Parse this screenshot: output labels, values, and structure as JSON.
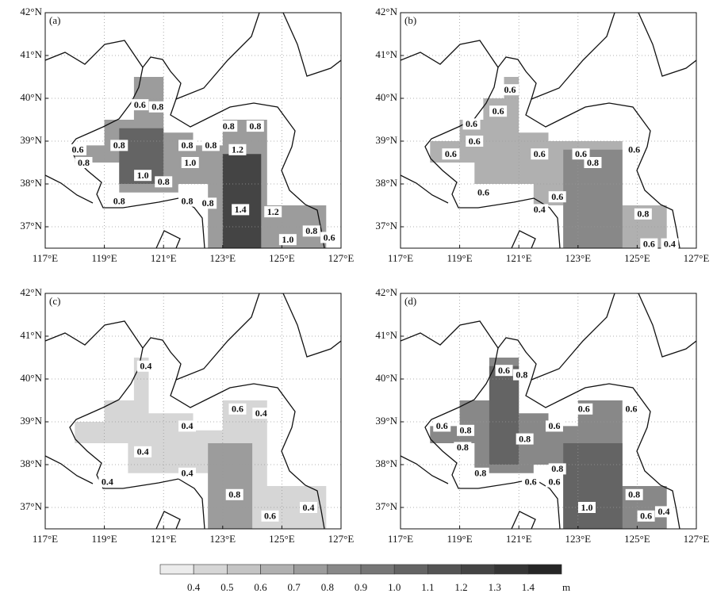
{
  "axes": {
    "lon_lim": [
      117,
      127
    ],
    "lat_lim": [
      36.5,
      42
    ],
    "lon_ticks": [
      {
        "value": 117,
        "label": "117°E"
      },
      {
        "value": 119,
        "label": "119°E"
      },
      {
        "value": 121,
        "label": "121°E"
      },
      {
        "value": 123,
        "label": "123°E"
      },
      {
        "value": 125,
        "label": "125°E"
      },
      {
        "value": 127,
        "label": "127°E"
      }
    ],
    "lat_ticks": [
      {
        "value": 37,
        "label": "37°N"
      },
      {
        "value": 38,
        "label": "38°N"
      },
      {
        "value": 39,
        "label": "39°N"
      },
      {
        "value": 40,
        "label": "40°N"
      },
      {
        "value": 41,
        "label": "41°N"
      },
      {
        "value": 42,
        "label": "42°N"
      }
    ]
  },
  "panels": [
    {
      "label": "(a)",
      "regions": [
        {
          "level": 0.7,
          "polygon": [
            [
              118,
              38.5
            ],
            [
              118,
              38.9
            ],
            [
              119,
              38.9
            ],
            [
              119,
              39.5
            ],
            [
              120,
              39.5
            ],
            [
              120,
              40.5
            ],
            [
              121,
              40.5
            ],
            [
              121,
              39.2
            ],
            [
              122,
              39.2
            ],
            [
              122,
              38.9
            ],
            [
              123,
              38.9
            ],
            [
              123,
              39.5
            ],
            [
              124.5,
              39.5
            ],
            [
              124.5,
              37.5
            ],
            [
              126.5,
              37.5
            ],
            [
              126.5,
              36.5
            ],
            [
              122.5,
              36.5
            ],
            [
              122.5,
              38
            ],
            [
              121.5,
              38
            ],
            [
              121.5,
              37.8
            ],
            [
              119.5,
              37.8
            ],
            [
              119.5,
              38.5
            ]
          ]
        },
        {
          "level": 1.0,
          "polygon": [
            [
              119.5,
              38
            ],
            [
              119.5,
              39.3
            ],
            [
              121,
              39.3
            ],
            [
              121,
              38
            ]
          ]
        },
        {
          "level": 1.2,
          "polygon": [
            [
              123,
              36.5
            ],
            [
              123,
              38.7
            ],
            [
              124.3,
              38.7
            ],
            [
              124.3,
              36.5
            ]
          ]
        }
      ],
      "contour_labels": [
        {
          "label": "0.6",
          "lon": 120.2,
          "lat": 39.85
        },
        {
          "label": "0.8",
          "lon": 120.8,
          "lat": 39.8
        },
        {
          "label": "0.8",
          "lon": 119.5,
          "lat": 38.9
        },
        {
          "label": "0.6",
          "lon": 118.1,
          "lat": 38.8
        },
        {
          "label": "0.8",
          "lon": 118.3,
          "lat": 38.5
        },
        {
          "label": "1.0",
          "lon": 120.3,
          "lat": 38.2
        },
        {
          "label": "0.8",
          "lon": 121,
          "lat": 38.05
        },
        {
          "label": "0.8",
          "lon": 119.5,
          "lat": 37.6
        },
        {
          "label": "0.8",
          "lon": 121.8,
          "lat": 38.9
        },
        {
          "label": "1.0",
          "lon": 121.9,
          "lat": 38.5
        },
        {
          "label": "0.8",
          "lon": 122.6,
          "lat": 38.9
        },
        {
          "label": "0.8",
          "lon": 123.2,
          "lat": 39.35
        },
        {
          "label": "0.8",
          "lon": 124.1,
          "lat": 39.35
        },
        {
          "label": "1.2",
          "lon": 123.5,
          "lat": 38.8
        },
        {
          "label": "0.8",
          "lon": 121.8,
          "lat": 37.6
        },
        {
          "label": "0.8",
          "lon": 122.5,
          "lat": 37.55
        },
        {
          "label": "1.4",
          "lon": 123.6,
          "lat": 37.4
        },
        {
          "label": "1.2",
          "lon": 124.7,
          "lat": 37.35
        },
        {
          "label": "0.8",
          "lon": 126,
          "lat": 36.9
        },
        {
          "label": "1.0",
          "lon": 125.2,
          "lat": 36.7
        },
        {
          "label": "0.6",
          "lon": 126.6,
          "lat": 36.75
        }
      ]
    },
    {
      "label": "(b)",
      "regions": [
        {
          "level": 0.6,
          "polygon": [
            [
              118,
              38.5
            ],
            [
              118,
              39
            ],
            [
              119,
              39
            ],
            [
              119,
              39.5
            ],
            [
              119.8,
              39.5
            ],
            [
              119.8,
              40
            ],
            [
              120.5,
              40
            ],
            [
              120.5,
              40.5
            ],
            [
              121,
              40.5
            ],
            [
              121,
              39.2
            ],
            [
              122,
              39.2
            ],
            [
              122,
              39
            ],
            [
              124.5,
              39
            ],
            [
              124.5,
              37.5
            ],
            [
              126,
              37.5
            ],
            [
              126,
              36.5
            ],
            [
              122.5,
              36.5
            ],
            [
              122.5,
              37.5
            ],
            [
              121.5,
              37.5
            ],
            [
              121.5,
              38
            ],
            [
              119.5,
              38
            ],
            [
              119.5,
              38.5
            ]
          ]
        },
        {
          "level": 0.8,
          "polygon": [
            [
              122.5,
              36.5
            ],
            [
              122.5,
              38.8
            ],
            [
              124.5,
              38.8
            ],
            [
              124.5,
              36.5
            ]
          ]
        }
      ],
      "contour_labels": [
        {
          "label": "0.6",
          "lon": 120.7,
          "lat": 40.2
        },
        {
          "label": "0.6",
          "lon": 120.3,
          "lat": 39.7
        },
        {
          "label": "0.6",
          "lon": 119.4,
          "lat": 39.4
        },
        {
          "label": "0.6",
          "lon": 119.5,
          "lat": 39
        },
        {
          "label": "0.6",
          "lon": 118.7,
          "lat": 38.7
        },
        {
          "label": "0.6",
          "lon": 121.7,
          "lat": 38.7
        },
        {
          "label": "0.6",
          "lon": 123.1,
          "lat": 38.7
        },
        {
          "label": "0.8",
          "lon": 123.5,
          "lat": 38.5
        },
        {
          "label": "0.6",
          "lon": 124.9,
          "lat": 38.8
        },
        {
          "label": "0.6",
          "lon": 119.8,
          "lat": 37.8
        },
        {
          "label": "0.4",
          "lon": 121.7,
          "lat": 37.4
        },
        {
          "label": "0.6",
          "lon": 122.3,
          "lat": 37.7
        },
        {
          "label": "0.8",
          "lon": 125.2,
          "lat": 37.3
        },
        {
          "label": "0.6",
          "lon": 125.4,
          "lat": 36.6
        },
        {
          "label": "0.4",
          "lon": 126.1,
          "lat": 36.6
        }
      ]
    },
    {
      "label": "(c)",
      "regions": [
        {
          "level": 0.4,
          "polygon": [
            [
              118,
              38.5
            ],
            [
              118,
              39
            ],
            [
              119,
              39
            ],
            [
              119,
              39.5
            ],
            [
              120,
              39.5
            ],
            [
              120,
              40.5
            ],
            [
              120.5,
              40.5
            ],
            [
              120.5,
              39.2
            ],
            [
              122,
              39.2
            ],
            [
              122,
              38.8
            ],
            [
              123,
              38.8
            ],
            [
              123,
              39.5
            ],
            [
              124.5,
              39.5
            ],
            [
              124.5,
              37.5
            ],
            [
              126.5,
              37.5
            ],
            [
              126.5,
              36.5
            ],
            [
              122.5,
              36.5
            ],
            [
              122.5,
              37.8
            ],
            [
              119.8,
              37.8
            ],
            [
              119.8,
              38.5
            ]
          ]
        },
        {
          "level": 0.7,
          "polygon": [
            [
              122.5,
              36.5
            ],
            [
              122.5,
              38.5
            ],
            [
              124,
              38.5
            ],
            [
              124,
              36.5
            ]
          ]
        }
      ],
      "contour_labels": [
        {
          "label": "0.4",
          "lon": 120.4,
          "lat": 40.3
        },
        {
          "label": "0.4",
          "lon": 121.8,
          "lat": 38.9
        },
        {
          "label": "0.4",
          "lon": 120.3,
          "lat": 38.3
        },
        {
          "label": "0.4",
          "lon": 119.1,
          "lat": 37.6
        },
        {
          "label": "0.4",
          "lon": 121.8,
          "lat": 37.8
        },
        {
          "label": "0.6",
          "lon": 123.5,
          "lat": 39.3
        },
        {
          "label": "0.4",
          "lon": 124.3,
          "lat": 39.2
        },
        {
          "label": "0.8",
          "lon": 123.4,
          "lat": 37.3
        },
        {
          "label": "0.6",
          "lon": 124.6,
          "lat": 36.8
        },
        {
          "label": "0.4",
          "lon": 125.9,
          "lat": 37
        }
      ]
    },
    {
      "label": "(d)",
      "regions": [
        {
          "level": 0.8,
          "polygon": [
            [
              118,
              38.5
            ],
            [
              118,
              38.9
            ],
            [
              119,
              38.9
            ],
            [
              119,
              39.5
            ],
            [
              120,
              39.5
            ],
            [
              120,
              40.5
            ],
            [
              121,
              40.5
            ],
            [
              121,
              39.2
            ],
            [
              122,
              39.2
            ],
            [
              122,
              38.9
            ],
            [
              123,
              38.9
            ],
            [
              123,
              39.5
            ],
            [
              124.5,
              39.5
            ],
            [
              124.5,
              37.5
            ],
            [
              126,
              37.5
            ],
            [
              126,
              36.5
            ],
            [
              122.5,
              36.5
            ],
            [
              122.5,
              38
            ],
            [
              121.5,
              38
            ],
            [
              121.5,
              37.8
            ],
            [
              119.5,
              37.8
            ],
            [
              119.5,
              38.5
            ]
          ]
        },
        {
          "level": 1.0,
          "polygon": [
            [
              120,
              38
            ],
            [
              120,
              40.3
            ],
            [
              121,
              40.3
            ],
            [
              121,
              38
            ]
          ]
        },
        {
          "level": 1.0,
          "polygon": [
            [
              122.5,
              36.5
            ],
            [
              122.5,
              38.5
            ],
            [
              124.5,
              38.5
            ],
            [
              124.5,
              36.5
            ]
          ]
        }
      ],
      "contour_labels": [
        {
          "label": "0.6",
          "lon": 120.5,
          "lat": 40.2
        },
        {
          "label": "0.8",
          "lon": 121.1,
          "lat": 40.1
        },
        {
          "label": "0.6",
          "lon": 118.4,
          "lat": 38.9
        },
        {
          "label": "0.8",
          "lon": 119.2,
          "lat": 38.8
        },
        {
          "label": "0.8",
          "lon": 119.1,
          "lat": 38.4
        },
        {
          "label": "0.6",
          "lon": 122.2,
          "lat": 38.9
        },
        {
          "label": "0.8",
          "lon": 121.2,
          "lat": 38.6
        },
        {
          "label": "0.8",
          "lon": 122.3,
          "lat": 37.9
        },
        {
          "label": "0.6",
          "lon": 122.2,
          "lat": 37.6
        },
        {
          "label": "0.6",
          "lon": 121.4,
          "lat": 37.6
        },
        {
          "label": "0.8",
          "lon": 119.7,
          "lat": 37.8
        },
        {
          "label": "0.6",
          "lon": 123.2,
          "lat": 39.3
        },
        {
          "label": "0.6",
          "lon": 124.8,
          "lat": 39.3
        },
        {
          "label": "1.0",
          "lon": 123.3,
          "lat": 37
        },
        {
          "label": "0.8",
          "lon": 124.9,
          "lat": 37.3
        },
        {
          "label": "0.6",
          "lon": 125.3,
          "lat": 36.8
        },
        {
          "label": "0.4",
          "lon": 125.9,
          "lat": 36.9
        }
      ]
    }
  ],
  "colorbar": {
    "levels": [
      {
        "value": 0.4,
        "label": "0.4"
      },
      {
        "value": 0.5,
        "label": "0.5"
      },
      {
        "value": 0.6,
        "label": "0.6"
      },
      {
        "value": 0.7,
        "label": "0.7"
      },
      {
        "value": 0.8,
        "label": "0.8"
      },
      {
        "value": 0.9,
        "label": "0.9"
      },
      {
        "value": 1,
        "label": "1.0"
      },
      {
        "value": 1.1,
        "label": "1.1"
      },
      {
        "value": 1.2,
        "label": "1.2"
      },
      {
        "value": 1.3,
        "label": "1.3"
      },
      {
        "value": 1.4,
        "label": "1.4"
      }
    ],
    "colors": [
      "#ececec",
      "#d6d6d6",
      "#c4c4c4",
      "#b0b0b0",
      "#9c9c9c",
      "#888888",
      "#767676",
      "#646464",
      "#545454",
      "#444444",
      "#353535",
      "#262626"
    ],
    "unit": "m"
  }
}
